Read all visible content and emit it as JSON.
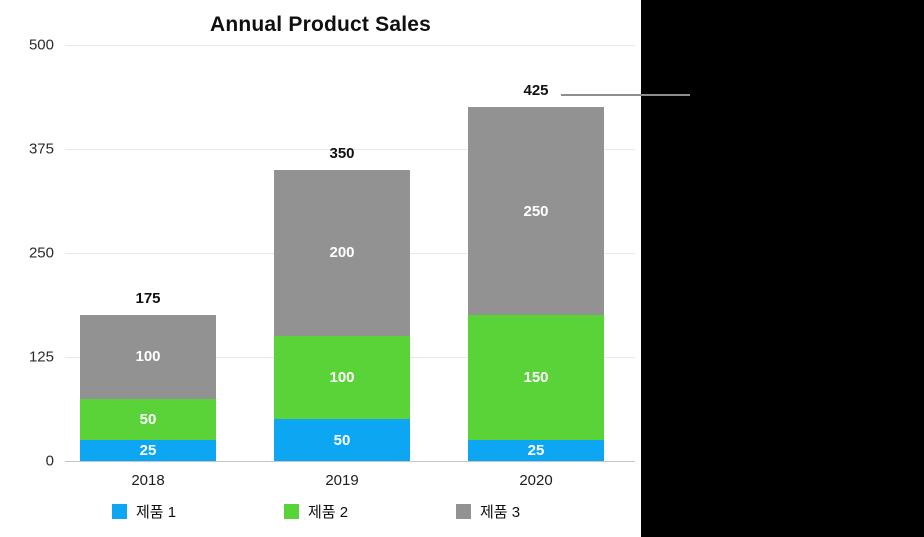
{
  "chart_data": {
    "type": "bar",
    "stacked": true,
    "title": "Annual Product Sales",
    "categories": [
      "2018",
      "2019",
      "2020"
    ],
    "series": [
      {
        "name": "제품 1",
        "color": "#0ca6f2",
        "values": [
          25,
          50,
          25
        ]
      },
      {
        "name": "제품 2",
        "color": "#59d337",
        "values": [
          50,
          100,
          150
        ]
      },
      {
        "name": "제품 3",
        "color": "#929292",
        "values": [
          100,
          200,
          250
        ]
      }
    ],
    "totals": [
      "175",
      "350",
      "425"
    ],
    "y_ticks": [
      "500",
      "375",
      "250",
      "125",
      "0"
    ],
    "ylim": [
      0,
      500
    ],
    "grid": true,
    "legend_position": "bottom",
    "annotation": {
      "callout_points_to_total": "425"
    }
  },
  "colors": {
    "right_panel_background": "#000000",
    "chart_background": "#ffffff",
    "gridline": "#e9e9e9",
    "axis_line": "#c5c5c5",
    "callout_line": "#8e8e8e",
    "segment_label_text": "#ffffff",
    "text": "#111111"
  }
}
